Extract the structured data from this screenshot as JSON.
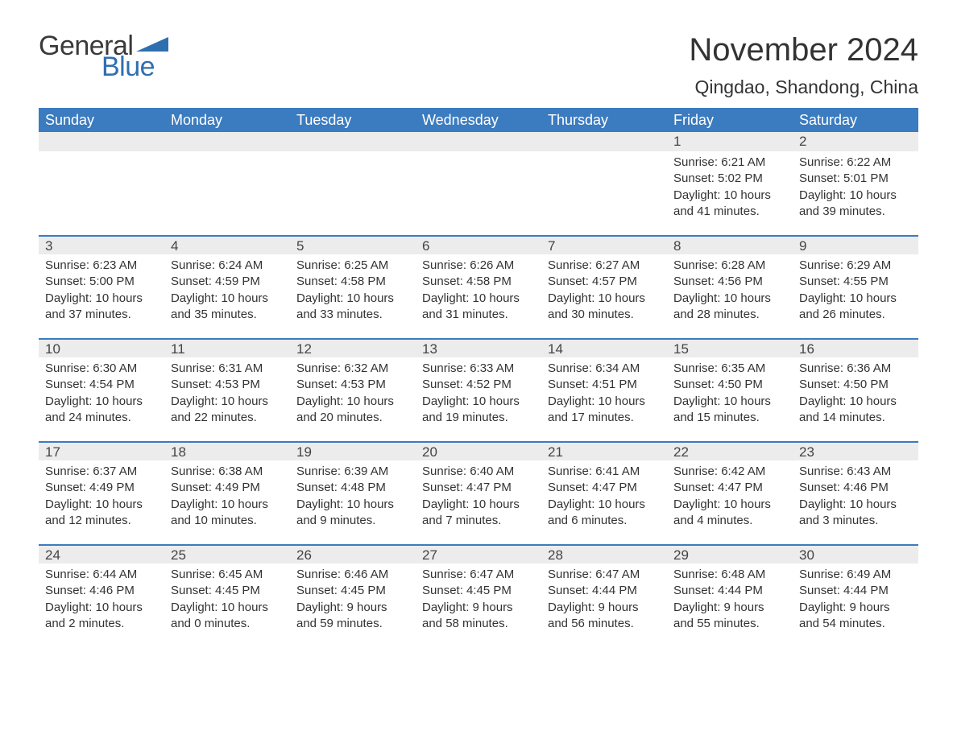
{
  "logo": {
    "word1": "General",
    "word2": "Blue",
    "color_general": "#3a3a3a",
    "color_blue": "#2f6fb0",
    "triangle_color": "#2f6fb0"
  },
  "header": {
    "title": "November 2024",
    "location": "Qingdao, Shandong, China",
    "title_fontsize": 40,
    "location_fontsize": 23,
    "text_color": "#333333"
  },
  "calendar_style": {
    "header_bg": "#3b7bbf",
    "header_text_color": "#ffffff",
    "day_row_bg": "#ececec",
    "day_row_border_top": "#3b7bbf",
    "body_text_color": "#333333",
    "header_fontsize": 18,
    "daynum_fontsize": 17,
    "body_fontsize": 15,
    "columns": 7,
    "rows": 5
  },
  "weekdays": [
    "Sunday",
    "Monday",
    "Tuesday",
    "Wednesday",
    "Thursday",
    "Friday",
    "Saturday"
  ],
  "weeks": [
    [
      null,
      null,
      null,
      null,
      null,
      {
        "day": "1",
        "sunrise": "Sunrise: 6:21 AM",
        "sunset": "Sunset: 5:02 PM",
        "daylight": "Daylight: 10 hours and 41 minutes."
      },
      {
        "day": "2",
        "sunrise": "Sunrise: 6:22 AM",
        "sunset": "Sunset: 5:01 PM",
        "daylight": "Daylight: 10 hours and 39 minutes."
      }
    ],
    [
      {
        "day": "3",
        "sunrise": "Sunrise: 6:23 AM",
        "sunset": "Sunset: 5:00 PM",
        "daylight": "Daylight: 10 hours and 37 minutes."
      },
      {
        "day": "4",
        "sunrise": "Sunrise: 6:24 AM",
        "sunset": "Sunset: 4:59 PM",
        "daylight": "Daylight: 10 hours and 35 minutes."
      },
      {
        "day": "5",
        "sunrise": "Sunrise: 6:25 AM",
        "sunset": "Sunset: 4:58 PM",
        "daylight": "Daylight: 10 hours and 33 minutes."
      },
      {
        "day": "6",
        "sunrise": "Sunrise: 6:26 AM",
        "sunset": "Sunset: 4:58 PM",
        "daylight": "Daylight: 10 hours and 31 minutes."
      },
      {
        "day": "7",
        "sunrise": "Sunrise: 6:27 AM",
        "sunset": "Sunset: 4:57 PM",
        "daylight": "Daylight: 10 hours and 30 minutes."
      },
      {
        "day": "8",
        "sunrise": "Sunrise: 6:28 AM",
        "sunset": "Sunset: 4:56 PM",
        "daylight": "Daylight: 10 hours and 28 minutes."
      },
      {
        "day": "9",
        "sunrise": "Sunrise: 6:29 AM",
        "sunset": "Sunset: 4:55 PM",
        "daylight": "Daylight: 10 hours and 26 minutes."
      }
    ],
    [
      {
        "day": "10",
        "sunrise": "Sunrise: 6:30 AM",
        "sunset": "Sunset: 4:54 PM",
        "daylight": "Daylight: 10 hours and 24 minutes."
      },
      {
        "day": "11",
        "sunrise": "Sunrise: 6:31 AM",
        "sunset": "Sunset: 4:53 PM",
        "daylight": "Daylight: 10 hours and 22 minutes."
      },
      {
        "day": "12",
        "sunrise": "Sunrise: 6:32 AM",
        "sunset": "Sunset: 4:53 PM",
        "daylight": "Daylight: 10 hours and 20 minutes."
      },
      {
        "day": "13",
        "sunrise": "Sunrise: 6:33 AM",
        "sunset": "Sunset: 4:52 PM",
        "daylight": "Daylight: 10 hours and 19 minutes."
      },
      {
        "day": "14",
        "sunrise": "Sunrise: 6:34 AM",
        "sunset": "Sunset: 4:51 PM",
        "daylight": "Daylight: 10 hours and 17 minutes."
      },
      {
        "day": "15",
        "sunrise": "Sunrise: 6:35 AM",
        "sunset": "Sunset: 4:50 PM",
        "daylight": "Daylight: 10 hours and 15 minutes."
      },
      {
        "day": "16",
        "sunrise": "Sunrise: 6:36 AM",
        "sunset": "Sunset: 4:50 PM",
        "daylight": "Daylight: 10 hours and 14 minutes."
      }
    ],
    [
      {
        "day": "17",
        "sunrise": "Sunrise: 6:37 AM",
        "sunset": "Sunset: 4:49 PM",
        "daylight": "Daylight: 10 hours and 12 minutes."
      },
      {
        "day": "18",
        "sunrise": "Sunrise: 6:38 AM",
        "sunset": "Sunset: 4:49 PM",
        "daylight": "Daylight: 10 hours and 10 minutes."
      },
      {
        "day": "19",
        "sunrise": "Sunrise: 6:39 AM",
        "sunset": "Sunset: 4:48 PM",
        "daylight": "Daylight: 10 hours and 9 minutes."
      },
      {
        "day": "20",
        "sunrise": "Sunrise: 6:40 AM",
        "sunset": "Sunset: 4:47 PM",
        "daylight": "Daylight: 10 hours and 7 minutes."
      },
      {
        "day": "21",
        "sunrise": "Sunrise: 6:41 AM",
        "sunset": "Sunset: 4:47 PM",
        "daylight": "Daylight: 10 hours and 6 minutes."
      },
      {
        "day": "22",
        "sunrise": "Sunrise: 6:42 AM",
        "sunset": "Sunset: 4:47 PM",
        "daylight": "Daylight: 10 hours and 4 minutes."
      },
      {
        "day": "23",
        "sunrise": "Sunrise: 6:43 AM",
        "sunset": "Sunset: 4:46 PM",
        "daylight": "Daylight: 10 hours and 3 minutes."
      }
    ],
    [
      {
        "day": "24",
        "sunrise": "Sunrise: 6:44 AM",
        "sunset": "Sunset: 4:46 PM",
        "daylight": "Daylight: 10 hours and 2 minutes."
      },
      {
        "day": "25",
        "sunrise": "Sunrise: 6:45 AM",
        "sunset": "Sunset: 4:45 PM",
        "daylight": "Daylight: 10 hours and 0 minutes."
      },
      {
        "day": "26",
        "sunrise": "Sunrise: 6:46 AM",
        "sunset": "Sunset: 4:45 PM",
        "daylight": "Daylight: 9 hours and 59 minutes."
      },
      {
        "day": "27",
        "sunrise": "Sunrise: 6:47 AM",
        "sunset": "Sunset: 4:45 PM",
        "daylight": "Daylight: 9 hours and 58 minutes."
      },
      {
        "day": "28",
        "sunrise": "Sunrise: 6:47 AM",
        "sunset": "Sunset: 4:44 PM",
        "daylight": "Daylight: 9 hours and 56 minutes."
      },
      {
        "day": "29",
        "sunrise": "Sunrise: 6:48 AM",
        "sunset": "Sunset: 4:44 PM",
        "daylight": "Daylight: 9 hours and 55 minutes."
      },
      {
        "day": "30",
        "sunrise": "Sunrise: 6:49 AM",
        "sunset": "Sunset: 4:44 PM",
        "daylight": "Daylight: 9 hours and 54 minutes."
      }
    ]
  ]
}
